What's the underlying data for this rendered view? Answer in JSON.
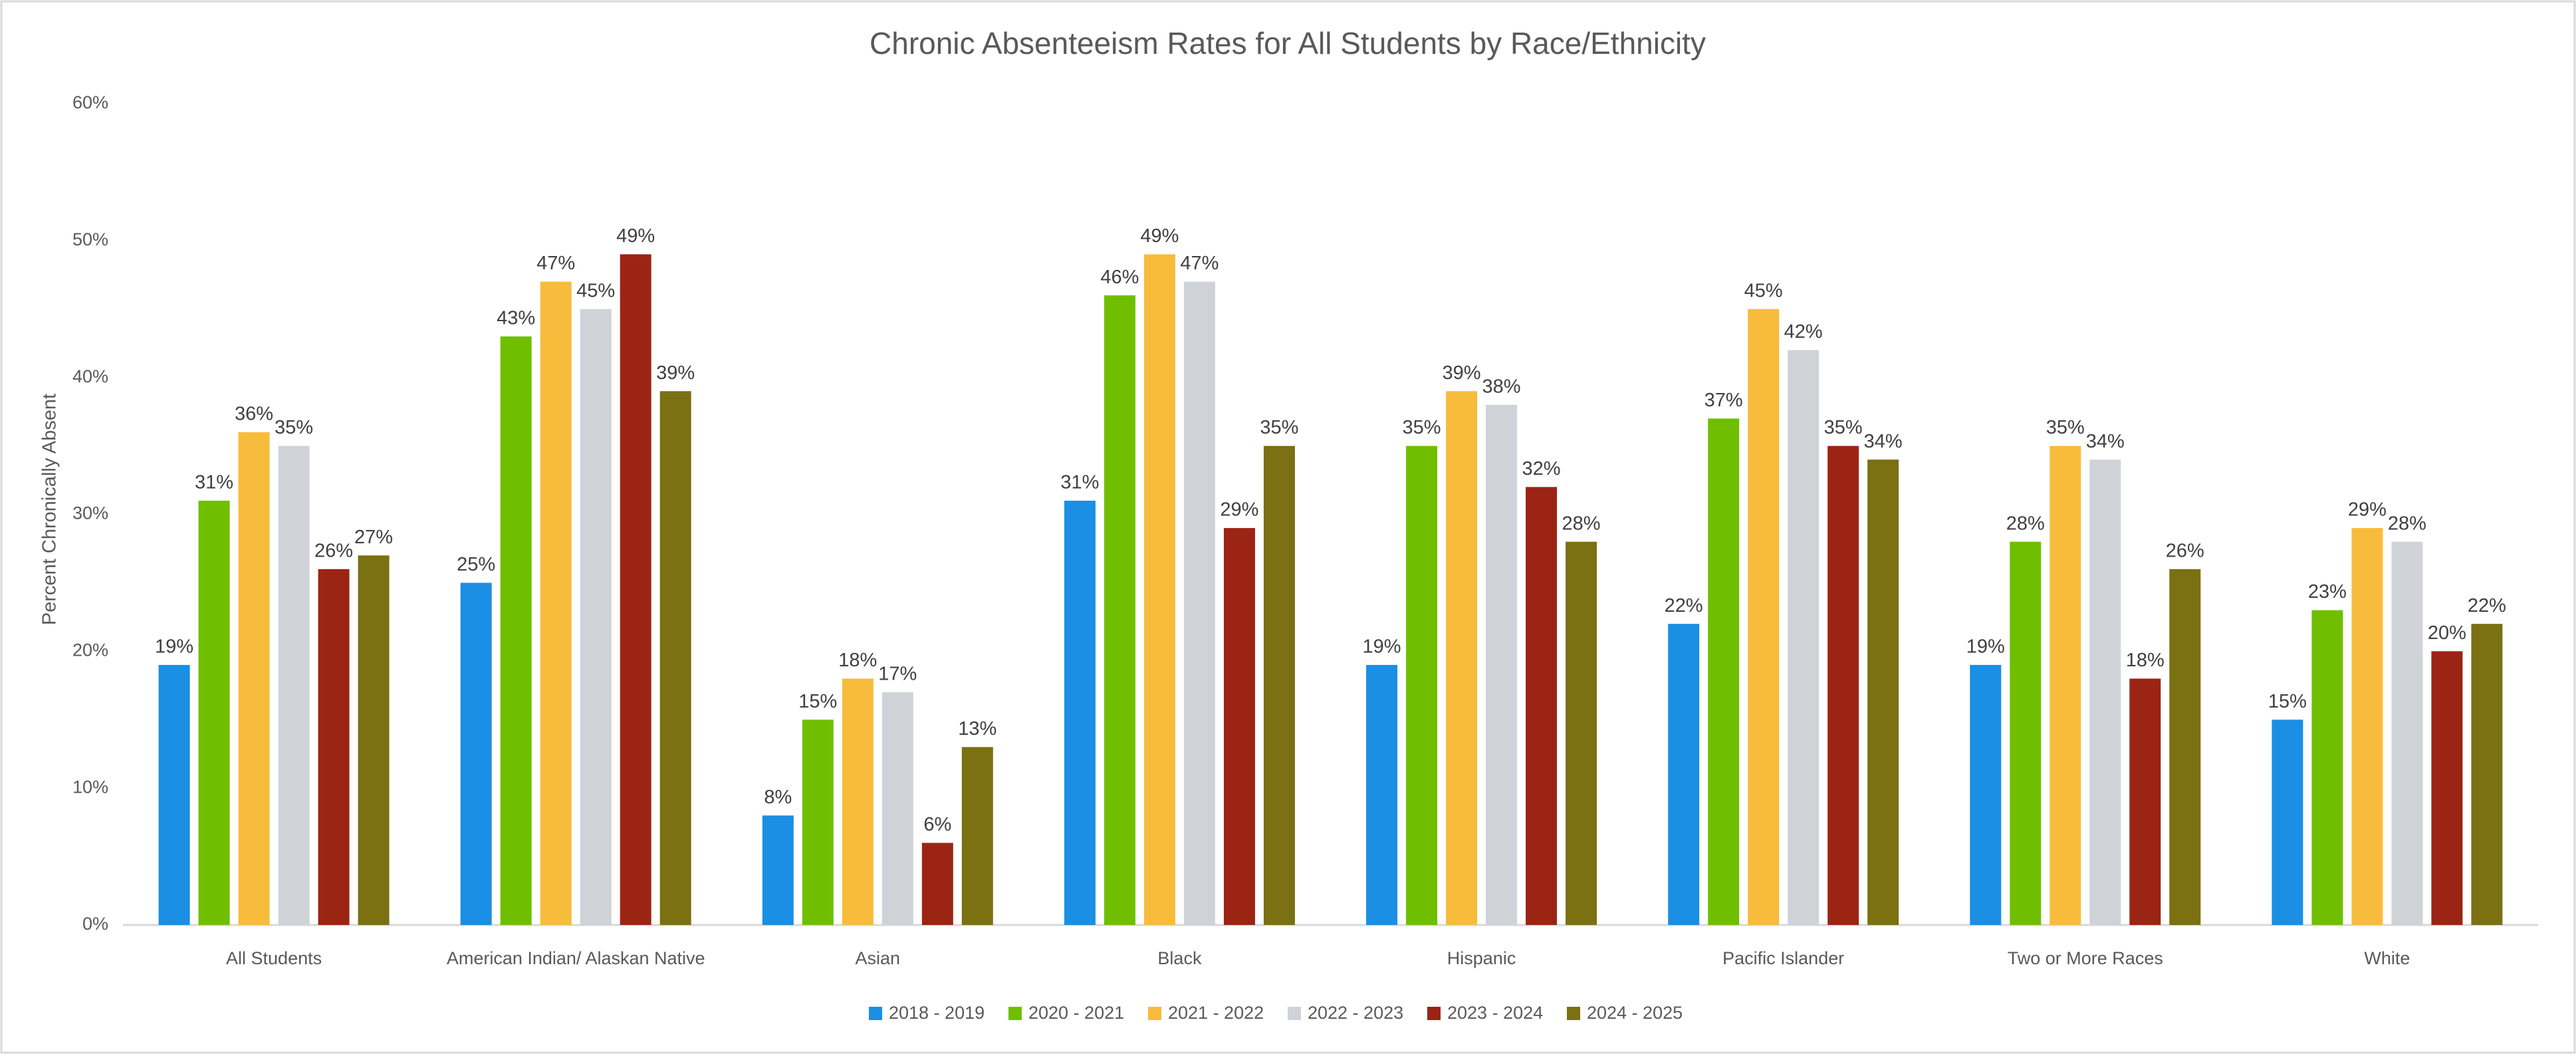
{
  "chart_data": {
    "type": "bar",
    "title": "Chronic Absenteeism Rates for All Students by Race/Ethnicity",
    "y_label": "Percent Chronically Absent",
    "categories": [
      "All Students",
      "American Indian/ Alaskan Native",
      "Asian",
      "Black",
      "Hispanic",
      "Pacific Islander",
      "Two or More Races",
      "White"
    ],
    "series": [
      {
        "name": "2018 - 2019",
        "color": "#1a8fe3",
        "values": [
          19,
          25,
          8,
          31,
          19,
          22,
          19,
          15
        ],
        "value_labels": [
          "19%",
          "25%",
          "8%",
          "31%",
          "19%",
          "22%",
          "19%",
          "15%"
        ]
      },
      {
        "name": "2020 - 2021",
        "color": "#6fbf00",
        "values": [
          31,
          43,
          15,
          46,
          35,
          37,
          28,
          23
        ],
        "value_labels": [
          "31%",
          "43%",
          "15%",
          "46%",
          "35%",
          "37%",
          "28%",
          "23%"
        ]
      },
      {
        "name": "2021 - 2022",
        "color": "#f8bc3c",
        "values": [
          36,
          47,
          18,
          49,
          39,
          45,
          35,
          29
        ],
        "value_labels": [
          "36%",
          "47%",
          "18%",
          "49%",
          "39%",
          "45%",
          "35%",
          "29%"
        ]
      },
      {
        "name": "2022 - 2023",
        "color": "#cfd3d8",
        "values": [
          35,
          45,
          17,
          47,
          38,
          42,
          34,
          28
        ],
        "value_labels": [
          "35%",
          "45%",
          "17%",
          "47%",
          "38%",
          "42%",
          "34%",
          "28%"
        ]
      },
      {
        "name": "2023 - 2024",
        "color": "#9c2414",
        "values": [
          26,
          49,
          6,
          29,
          32,
          35,
          18,
          20
        ],
        "value_labels": [
          "26%",
          "49%",
          "6%",
          "29%",
          "32%",
          "35%",
          "18%",
          "20%"
        ]
      },
      {
        "name": "2024 - 2025",
        "color": "#7b7012",
        "values": [
          27,
          39,
          13,
          35,
          28,
          34,
          26,
          22
        ],
        "value_labels": [
          "27%",
          "39%",
          "13%",
          "35%",
          "28%",
          "34%",
          "26%",
          "22%"
        ]
      }
    ],
    "ylim": [
      0,
      60
    ],
    "yticks": [
      {
        "value": 0,
        "label": "0%"
      },
      {
        "value": 10,
        "label": "10%"
      },
      {
        "value": 20,
        "label": "20%"
      },
      {
        "value": 30,
        "label": "30%"
      },
      {
        "value": 40,
        "label": "40%"
      },
      {
        "value": 50,
        "label": "50%"
      },
      {
        "value": 60,
        "label": "60%"
      }
    ],
    "grid": false,
    "legend": "bottom"
  }
}
